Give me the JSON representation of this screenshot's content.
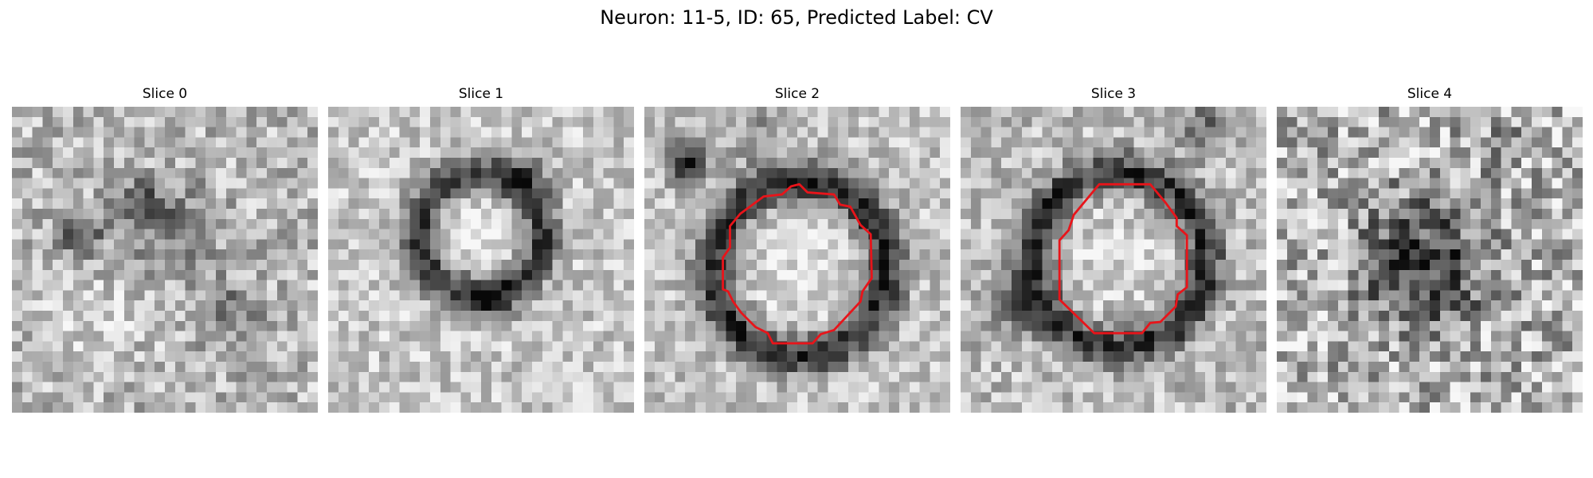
{
  "figure": {
    "title": "Neuron: 11-5, ID: 65, Predicted Label: CV"
  },
  "slices": [
    {
      "title": "Slice 0",
      "has_contour": false,
      "appearance": "noisy texture, dark blob near center-left"
    },
    {
      "title": "Slice 1",
      "has_contour": false,
      "appearance": "dark ring around bright center"
    },
    {
      "title": "Slice 2",
      "has_contour": true,
      "appearance": "dark ring around bright center, dark spot upper-left"
    },
    {
      "title": "Slice 3",
      "has_contour": true,
      "appearance": "dark ring around bright center"
    },
    {
      "title": "Slice 4",
      "has_contour": false,
      "appearance": "noisy texture, dark cluster at center"
    }
  ],
  "colors": {
    "contour": "#e8141a"
  }
}
